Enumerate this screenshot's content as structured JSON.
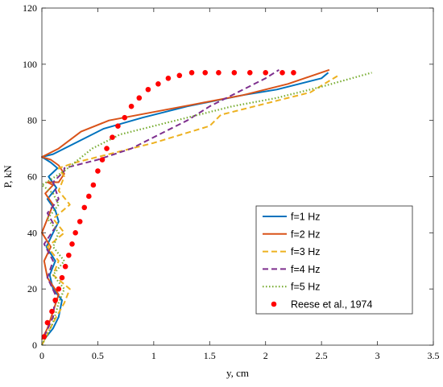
{
  "chart_data": {
    "type": "line",
    "xlabel": "y, cm",
    "ylabel": "P, kN",
    "xlim": [
      0,
      3.5
    ],
    "ylim": [
      0,
      120
    ],
    "xticks": [
      0,
      0.5,
      1,
      1.5,
      2,
      2.5,
      3,
      3.5
    ],
    "xtick_labels": [
      "0",
      "0.5",
      "1",
      "1.5",
      "2",
      "2.5",
      "3",
      "3.5"
    ],
    "yticks": [
      0,
      20,
      40,
      60,
      80,
      100,
      120
    ],
    "ytick_labels": [
      "0",
      "20",
      "40",
      "60",
      "80",
      "100",
      "120"
    ],
    "grid": false,
    "legend_position": "lower-right",
    "series": [
      {
        "name": "f=1 Hz",
        "color": "#0072BD",
        "style": "solid",
        "x": [
          0.02,
          0.1,
          0.15,
          0.18,
          0.1,
          0.07,
          0.12,
          0.04,
          0.1,
          0.15,
          0.12,
          0.05,
          0.13,
          0.06,
          0.14,
          0.08,
          0.04,
          0.0,
          0.1,
          0.3,
          0.55,
          0.9,
          1.3,
          1.8,
          2.1,
          2.3,
          2.5,
          2.56
        ],
        "y": [
          2,
          6,
          10,
          16,
          20,
          25,
          30,
          35,
          40,
          44,
          48,
          52,
          56,
          60,
          63,
          65,
          66,
          67,
          68,
          72,
          77,
          81,
          85,
          89,
          91,
          93,
          95,
          97
        ]
      },
      {
        "name": "f=2 Hz",
        "color": "#D95319",
        "style": "solid",
        "x": [
          0.0,
          0.05,
          0.1,
          0.15,
          0.05,
          0.02,
          0.08,
          0.0,
          0.05,
          0.1,
          0.03,
          0.1,
          0.05,
          0.15,
          0.2,
          0.15,
          0.08,
          0.0,
          0.15,
          0.35,
          0.6,
          1.0,
          1.4,
          1.8,
          2.2,
          2.57
        ],
        "y": [
          2,
          6,
          12,
          18,
          24,
          30,
          35,
          40,
          45,
          50,
          54,
          57,
          58,
          58,
          61,
          64,
          66,
          67,
          70,
          76,
          80,
          83,
          86,
          89,
          93,
          98
        ]
      },
      {
        "name": "f=3 Hz",
        "color": "#EDB120",
        "style": "dashed",
        "x": [
          0.0,
          0.1,
          0.2,
          0.25,
          0.1,
          0.15,
          0.05,
          0.2,
          0.1,
          0.25,
          0.15,
          0.2,
          0.15,
          0.3,
          0.6,
          1.0,
          1.5,
          1.6,
          2.1,
          2.4,
          2.65
        ],
        "y": [
          0,
          8,
          15,
          20,
          25,
          30,
          35,
          40,
          45,
          50,
          55,
          60,
          63,
          65,
          68,
          72,
          78,
          82,
          87,
          90,
          96
        ]
      },
      {
        "name": "f=4 Hz",
        "color": "#7E2F8E",
        "style": "dashed",
        "x": [
          0.02,
          0.1,
          0.12,
          0.05,
          0.1,
          0.02,
          0.12,
          0.05,
          0.15,
          0.1,
          0.2,
          0.2,
          0.3,
          0.5,
          0.8,
          1.1,
          1.3,
          1.5,
          1.8,
          2.0,
          2.12
        ],
        "y": [
          3,
          10,
          18,
          24,
          30,
          36,
          42,
          47,
          52,
          58,
          62,
          63,
          64,
          66,
          70,
          76,
          80,
          85,
          91,
          95,
          98
        ]
      },
      {
        "name": "f=5 Hz",
        "color": "#77AC30",
        "style": "dotted",
        "x": [
          0.0,
          0.1,
          0.15,
          0.2,
          0.1,
          0.2,
          0.1,
          0.15,
          0.05,
          0.15,
          0.1,
          0.0,
          0.2,
          0.45,
          0.7,
          1.0,
          1.3,
          1.7,
          2.1,
          2.5,
          2.95
        ],
        "y": [
          0,
          8,
          15,
          20,
          25,
          30,
          35,
          40,
          45,
          50,
          54,
          57,
          62,
          70,
          75,
          78,
          81,
          85,
          88,
          92,
          97
        ]
      },
      {
        "name": "Reese et al., 1974",
        "color": "#FF0000",
        "style": "markers",
        "x": [
          0.02,
          0.05,
          0.09,
          0.12,
          0.15,
          0.18,
          0.21,
          0.24,
          0.27,
          0.3,
          0.34,
          0.38,
          0.42,
          0.46,
          0.5,
          0.54,
          0.58,
          0.63,
          0.68,
          0.74,
          0.8,
          0.87,
          0.95,
          1.04,
          1.13,
          1.23,
          1.34,
          1.46,
          1.58,
          1.72,
          1.86,
          2.0,
          2.15,
          2.25
        ],
        "y": [
          3,
          8,
          12,
          16,
          20,
          24,
          28,
          32,
          36,
          40,
          44,
          49,
          53,
          57,
          62,
          66,
          70,
          74,
          78,
          81,
          85,
          88,
          91,
          93,
          95,
          96,
          97,
          97,
          97,
          97,
          97,
          97,
          97,
          97
        ]
      }
    ]
  }
}
